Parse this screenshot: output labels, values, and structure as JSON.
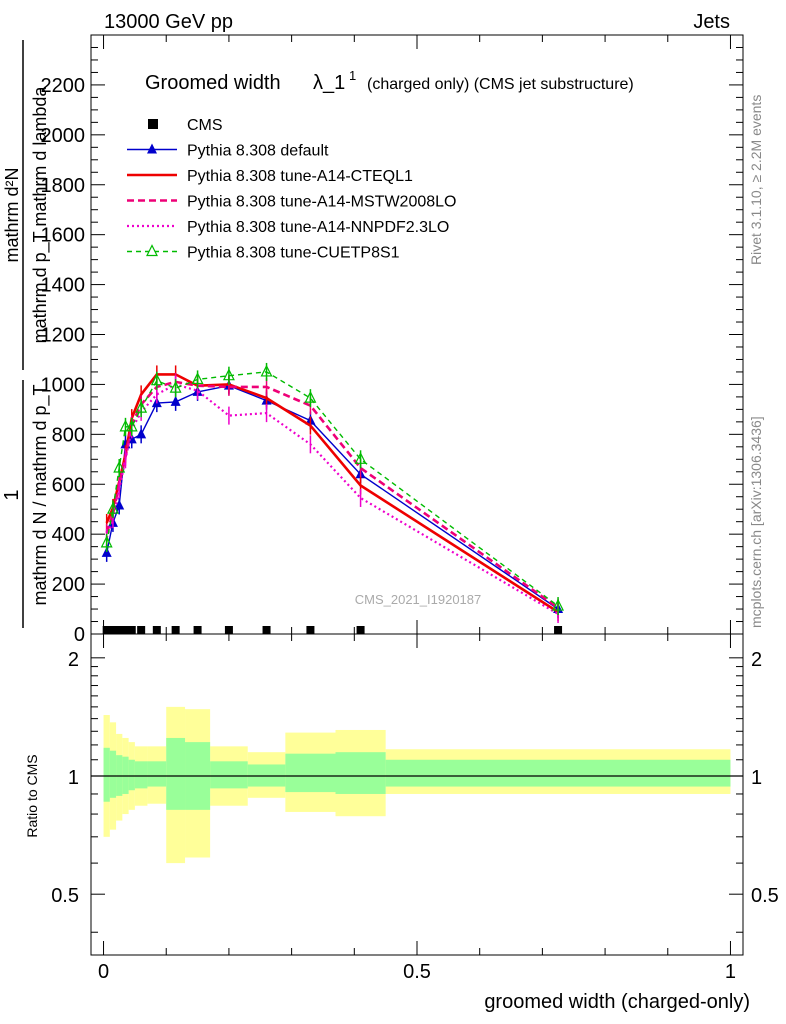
{
  "header": {
    "left": "13000 GeV pp",
    "right": "Jets"
  },
  "side_text": {
    "rivet": "Rivet 3.1.10, ≥ 2.2M events",
    "mcplots": "mcplots.cern.ch [arXiv:1306.3436]"
  },
  "chart_data": [
    {
      "type": "line",
      "panel": "main",
      "title_parts": {
        "main": "Groomed width",
        "symbol": "λ_1",
        "sup": "1",
        "rest": "(charged only) (CMS jet substructure)"
      },
      "ylabel_parts": {
        "top_num": "1",
        "top_den": "mathrm d N / mathrm d p_T",
        "right_num": "mathrm d²N",
        "right_den": "mathrm d p_T mathrm d lambda"
      },
      "ylim": [
        0,
        2400
      ],
      "xlim": [
        -0.02,
        1.02
      ],
      "yticks": [
        0,
        200,
        400,
        600,
        800,
        1000,
        1200,
        1400,
        1600,
        1800,
        2000,
        2200
      ],
      "ytick_labels": [
        "0",
        "200",
        "400",
        "600",
        "800",
        "1000",
        "1200",
        "1400",
        "1600",
        "1800",
        "2000",
        "2200"
      ],
      "watermark": "CMS_2021_I1920187",
      "legend_position": "top-left",
      "series": [
        {
          "name": "CMS",
          "style": "data",
          "color": "#000000",
          "x": [
            0.005,
            0.015,
            0.025,
            0.035,
            0.045,
            0.06,
            0.085,
            0.115,
            0.15,
            0.2,
            0.26,
            0.33,
            0.41,
            0.725
          ],
          "values": [
            0,
            0,
            0,
            0,
            0,
            0,
            0,
            0,
            0,
            0,
            0,
            0,
            0,
            0
          ]
        },
        {
          "name": "Pythia 8.308 default",
          "style": "solid-triangle",
          "color": "#0000cc",
          "x": [
            0.005,
            0.015,
            0.025,
            0.035,
            0.045,
            0.06,
            0.085,
            0.115,
            0.15,
            0.2,
            0.26,
            0.33,
            0.41,
            0.725
          ],
          "values": [
            325,
            445,
            515,
            760,
            780,
            800,
            925,
            930,
            970,
            995,
            935,
            855,
            640,
            100
          ]
        },
        {
          "name": "Pythia 8.308 tune-A14-CTEQL1",
          "style": "solid-thick",
          "color": "#ee0000",
          "x": [
            0.005,
            0.015,
            0.025,
            0.035,
            0.045,
            0.06,
            0.085,
            0.115,
            0.15,
            0.2,
            0.26,
            0.33,
            0.41,
            0.725
          ],
          "values": [
            445,
            505,
            610,
            720,
            865,
            960,
            1040,
            1040,
            995,
            1000,
            945,
            835,
            595,
            88
          ]
        },
        {
          "name": "Pythia 8.308 tune-A14-MSTW2008LO",
          "style": "dashed",
          "color": "#ee0077",
          "x": [
            0.005,
            0.015,
            0.025,
            0.035,
            0.045,
            0.06,
            0.085,
            0.115,
            0.15,
            0.2,
            0.26,
            0.33,
            0.41,
            0.725
          ],
          "values": [
            405,
            480,
            600,
            710,
            840,
            920,
            990,
            1010,
            995,
            990,
            990,
            915,
            665,
            105
          ]
        },
        {
          "name": "Pythia 8.308 tune-A14-NNPDF2.3LO",
          "style": "dotted",
          "color": "#ee00cc",
          "x": [
            0.005,
            0.015,
            0.025,
            0.035,
            0.045,
            0.06,
            0.085,
            0.115,
            0.15,
            0.2,
            0.26,
            0.33,
            0.41,
            0.725
          ],
          "values": [
            385,
            460,
            580,
            700,
            820,
            890,
            960,
            1000,
            975,
            875,
            885,
            760,
            545,
            80
          ]
        },
        {
          "name": "Pythia 8.308 tune-CUETP8S1",
          "style": "dashed-triangle-open",
          "color": "#00bb00",
          "x": [
            0.005,
            0.015,
            0.025,
            0.035,
            0.045,
            0.06,
            0.085,
            0.115,
            0.15,
            0.2,
            0.26,
            0.33,
            0.41,
            0.725
          ],
          "values": [
            365,
            500,
            665,
            830,
            830,
            905,
            1015,
            985,
            1020,
            1035,
            1050,
            945,
            700,
            112
          ]
        }
      ]
    },
    {
      "type": "area",
      "panel": "ratio",
      "ylabel": "Ratio to CMS",
      "xlabel": "groomed width (charged-only)",
      "ylim": [
        0.35,
        2.3
      ],
      "yscale": "log",
      "xlim": [
        -0.02,
        1.02
      ],
      "yticks": [
        0.5,
        1,
        2
      ],
      "ytick_labels": [
        "0.5",
        "1",
        "2"
      ],
      "xticks": [
        0,
        0.5,
        1
      ],
      "xtick_labels": [
        "0",
        "0.5",
        "1"
      ],
      "reference_line": 1,
      "bin_edges": [
        0.0,
        0.01,
        0.02,
        0.03,
        0.04,
        0.05,
        0.07,
        0.1,
        0.13,
        0.17,
        0.23,
        0.29,
        0.37,
        0.45,
        1.0
      ],
      "bands": [
        {
          "name": "total uncertainty",
          "color": "#ffff99",
          "lower": [
            0.7,
            0.73,
            0.77,
            0.8,
            0.82,
            0.84,
            0.85,
            0.6,
            0.62,
            0.84,
            0.88,
            0.81,
            0.79,
            0.9
          ],
          "upper": [
            1.43,
            1.37,
            1.28,
            1.25,
            1.22,
            1.19,
            1.19,
            1.5,
            1.48,
            1.19,
            1.15,
            1.29,
            1.31,
            1.17
          ]
        },
        {
          "name": "stat uncertainty",
          "color": "#99ff99",
          "lower": [
            0.86,
            0.88,
            0.89,
            0.9,
            0.92,
            0.93,
            0.94,
            0.82,
            0.82,
            0.93,
            0.94,
            0.91,
            0.9,
            0.94
          ],
          "upper": [
            1.18,
            1.16,
            1.13,
            1.12,
            1.1,
            1.09,
            1.09,
            1.25,
            1.22,
            1.09,
            1.07,
            1.14,
            1.15,
            1.1
          ]
        }
      ]
    }
  ]
}
